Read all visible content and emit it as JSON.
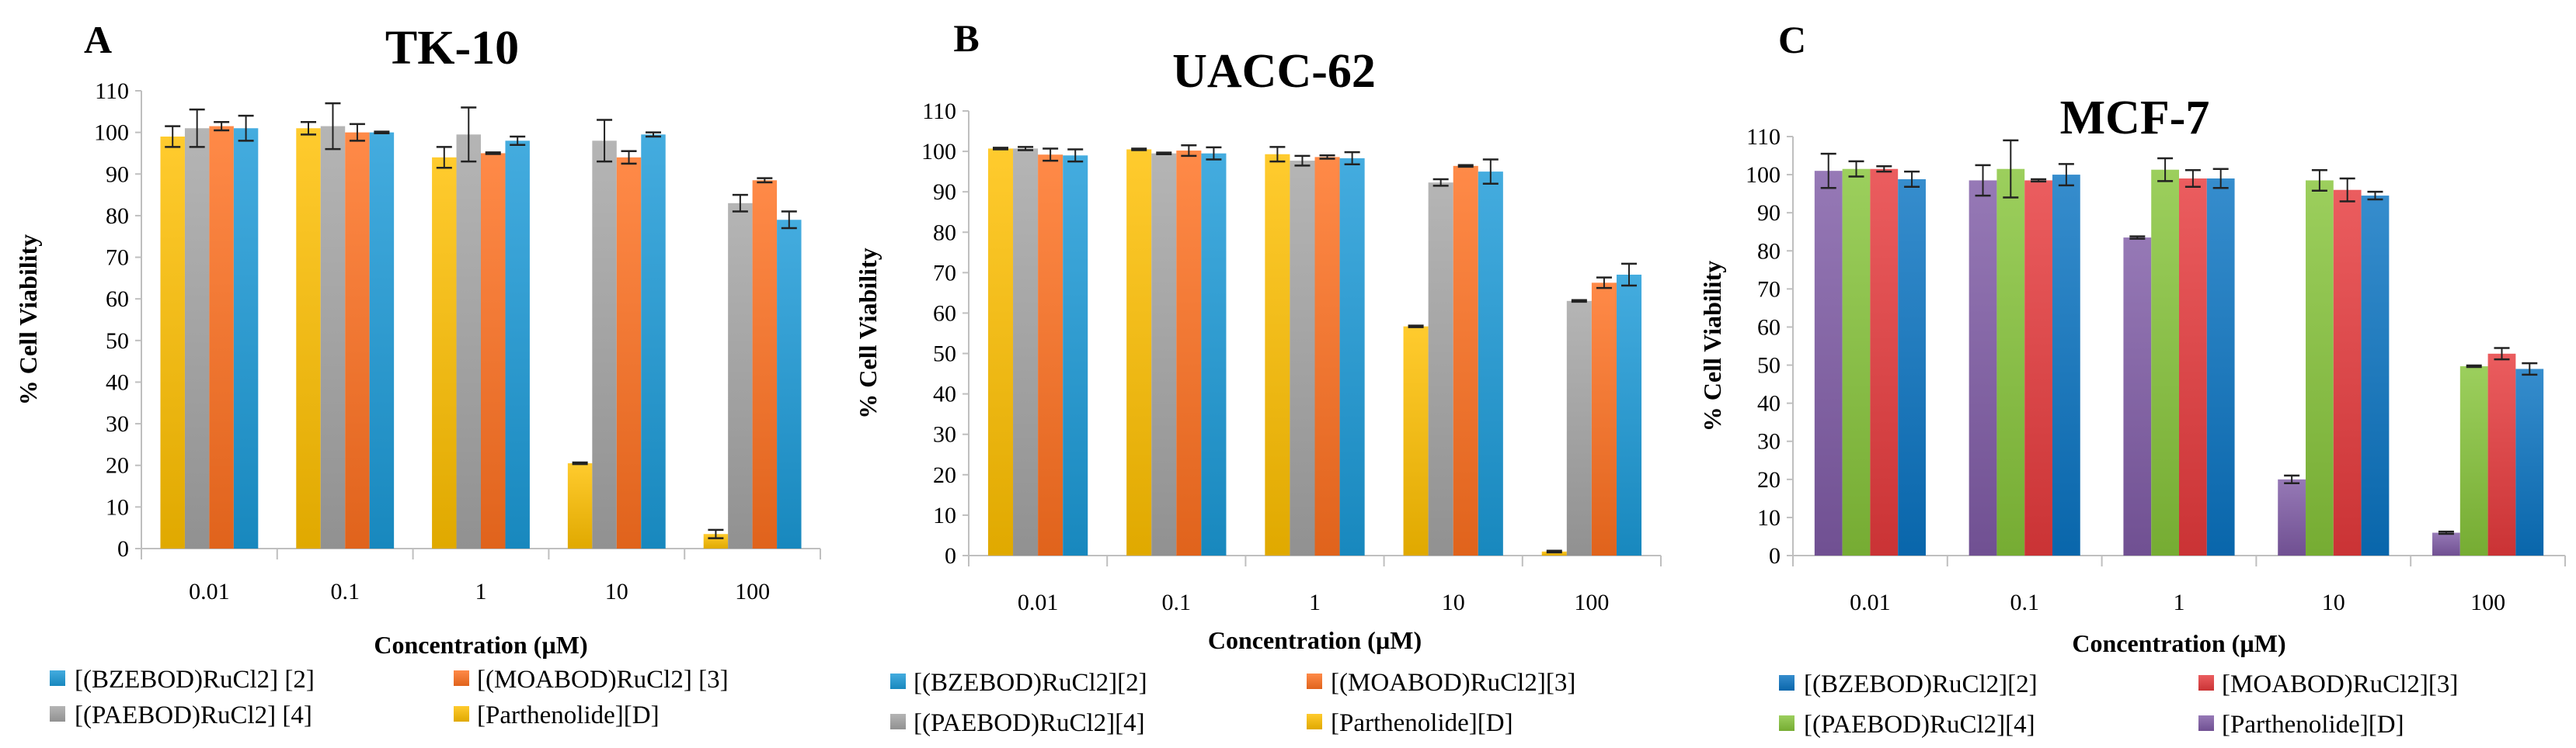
{
  "chart_data": [
    {
      "type": "bar",
      "panel_letter": "A",
      "title": "TK-10",
      "xlabel": "Concentration (µM)",
      "ylabel": "% Cell Viability",
      "ylim": [
        0,
        110
      ],
      "yticks": [
        "0",
        "10",
        "20",
        "30",
        "40",
        "50",
        "60",
        "70",
        "80",
        "90",
        "100",
        "110"
      ],
      "categories": [
        "0.01",
        "0.1",
        "1",
        "10",
        "100"
      ],
      "grid": false,
      "legend_position": "bottom",
      "series": [
        {
          "name": "[Parthenolide][D]",
          "color": "#FFC000",
          "values": [
            99,
            101,
            94,
            20.5,
            3.5
          ],
          "errors": [
            2.5,
            1.5,
            2.5,
            0.2,
            1
          ]
        },
        {
          "name": "[(PAEBOD)RuCl2] [4]",
          "color": "#A5A5A5",
          "values": [
            101,
            101.5,
            99.5,
            98,
            83
          ],
          "errors": [
            4.5,
            5.5,
            6.5,
            5,
            2
          ]
        },
        {
          "name": "[(MOABOD)RuCl2] [3]",
          "color": "#FF7020",
          "values": [
            101.5,
            100,
            95,
            94,
            88.5
          ],
          "errors": [
            1,
            2,
            0.2,
            1.5,
            0.5
          ]
        },
        {
          "name": "[(BZEBOD)RuCl2] [2]",
          "color": "#1B9AD8",
          "values": [
            101,
            100,
            98,
            99.5,
            79
          ],
          "errors": [
            3,
            0.2,
            1,
            0.5,
            2
          ]
        }
      ],
      "legend_order": [
        3,
        2,
        1,
        0
      ]
    },
    {
      "type": "bar",
      "panel_letter": "B",
      "title": "UACC-62",
      "xlabel": "Concentration (µM)",
      "ylabel": "% Cell Viability",
      "ylim": [
        0,
        110
      ],
      "yticks": [
        "0",
        "10",
        "20",
        "30",
        "40",
        "50",
        "60",
        "70",
        "80",
        "90",
        "100",
        "110"
      ],
      "categories": [
        "0.01",
        "0.1",
        "1",
        "10",
        "100"
      ],
      "grid": false,
      "legend_position": "bottom",
      "series": [
        {
          "name": "[Parthenolide][D]",
          "color": "#FFC000",
          "values": [
            100.7,
            100.5,
            99.3,
            56.7,
            1
          ],
          "errors": [
            0.2,
            0.2,
            1.8,
            0.2,
            0.2
          ]
        },
        {
          "name": "[(PAEBOD)RuCl2][4]",
          "color": "#A5A5A5",
          "values": [
            100.7,
            99.5,
            97.7,
            92.3,
            63
          ],
          "errors": [
            0.4,
            0.2,
            1.2,
            0.8,
            0.2
          ]
        },
        {
          "name": "[(MOABOD)RuCl2][3]",
          "color": "#FF7020",
          "values": [
            99.2,
            100.2,
            98.6,
            96.4,
            67.5
          ],
          "errors": [
            1.5,
            1.3,
            0.4,
            0.2,
            1.3
          ]
        },
        {
          "name": "[(BZEBOD)RuCl2][2]",
          "color": "#1B9AD8",
          "values": [
            99,
            99.5,
            98.3,
            95,
            69.5
          ],
          "errors": [
            1.5,
            1.5,
            1.5,
            3,
            2.7
          ]
        }
      ],
      "legend_order": [
        3,
        2,
        1,
        0
      ]
    },
    {
      "type": "bar",
      "panel_letter": "C",
      "title": "MCF-7",
      "xlabel": "Concentration (µM)",
      "ylabel": "% Cell Viability",
      "ylim": [
        0,
        110
      ],
      "yticks": [
        "0",
        "10",
        "20",
        "30",
        "40",
        "50",
        "60",
        "70",
        "80",
        "90",
        "100",
        "110"
      ],
      "categories": [
        "0.01",
        "0.1",
        "1",
        "10",
        "100"
      ],
      "grid": false,
      "legend_position": "bottom",
      "series": [
        {
          "name": "[Parthenolide][D]",
          "color": "#7F5BA6",
          "values": [
            101,
            98.5,
            83.5,
            20,
            6
          ],
          "errors": [
            4.5,
            4,
            0.3,
            1,
            0.3
          ]
        },
        {
          "name": "[(PAEBOD)RuCl2][4]",
          "color": "#86C43A",
          "values": [
            101.5,
            101.5,
            101.3,
            98.5,
            49.7
          ],
          "errors": [
            2,
            7.5,
            3,
            2.7,
            0.2
          ]
        },
        {
          "name": "[MOABOD)RuCl2][3]",
          "color": "#E63A3C",
          "values": [
            101.5,
            98.5,
            99,
            96,
            53
          ],
          "errors": [
            0.7,
            0.3,
            2.2,
            3,
            1.5
          ]
        },
        {
          "name": "[(BZEBOD)RuCl2][2]",
          "color": "#0A74C2",
          "values": [
            98.8,
            100,
            99,
            94.5,
            49
          ],
          "errors": [
            2,
            2.8,
            2.5,
            1,
            1.5
          ]
        }
      ],
      "legend_order": [
        3,
        2,
        1,
        0
      ]
    }
  ]
}
